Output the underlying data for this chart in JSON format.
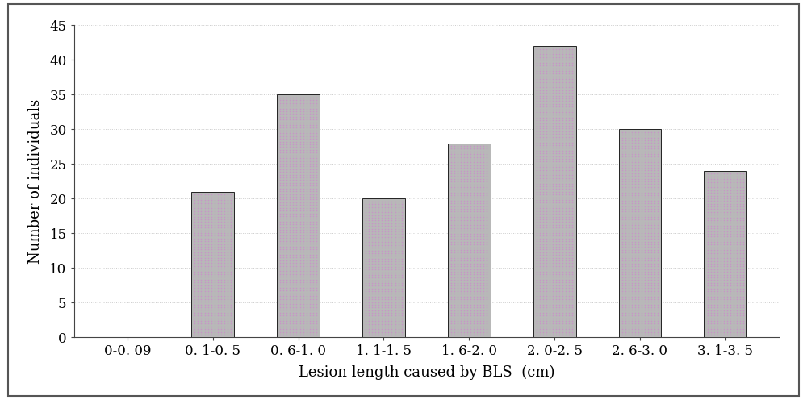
{
  "categories": [
    "0-0. 09",
    "0. 1-0. 5",
    "0. 6-1. 0",
    "1. 1-1. 5",
    "1. 6-2. 0",
    "2. 0-2. 5",
    "2. 6-3. 0",
    "3. 1-3. 5"
  ],
  "values": [
    0,
    21,
    35,
    20,
    28,
    42,
    30,
    24
  ],
  "bar_color": "#b8b8b8",
  "bar_edgecolor": "#222222",
  "xlabel": "Lesion length caused by BLS  (cm)",
  "ylabel": "Number of individuals",
  "ylim": [
    0,
    45
  ],
  "yticks": [
    0,
    5,
    10,
    15,
    20,
    25,
    30,
    35,
    40,
    45
  ],
  "background_color": "#ffffff",
  "tick_label_fontsize": 12,
  "axis_label_fontsize": 13,
  "bar_width": 0.5,
  "grid_color": "#cccccc",
  "border_color": "#444444",
  "fig_border_color": "#555555"
}
